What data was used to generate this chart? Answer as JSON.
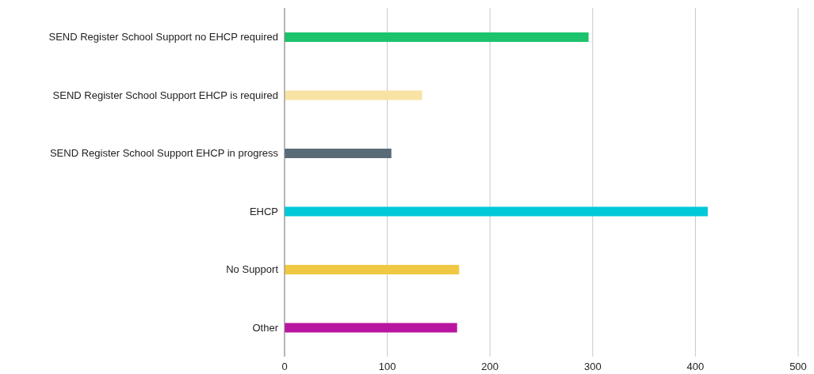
{
  "chart_data": {
    "type": "bar",
    "orientation": "horizontal",
    "categories": [
      "SEND Register School Support no EHCP required",
      "SEND Register School Support EHCP is required",
      "SEND Register School Support EHCP in progress",
      "EHCP",
      "No Support",
      "Other"
    ],
    "values": [
      296,
      134,
      104,
      412,
      170,
      168
    ],
    "colors": [
      "#1dc36c",
      "#f8e3a5",
      "#5a6b78",
      "#00c9d9",
      "#f0c843",
      "#b9169f"
    ],
    "xlim": [
      0,
      500
    ],
    "xticks": [
      0,
      100,
      200,
      300,
      400,
      500
    ],
    "grid": "x"
  }
}
